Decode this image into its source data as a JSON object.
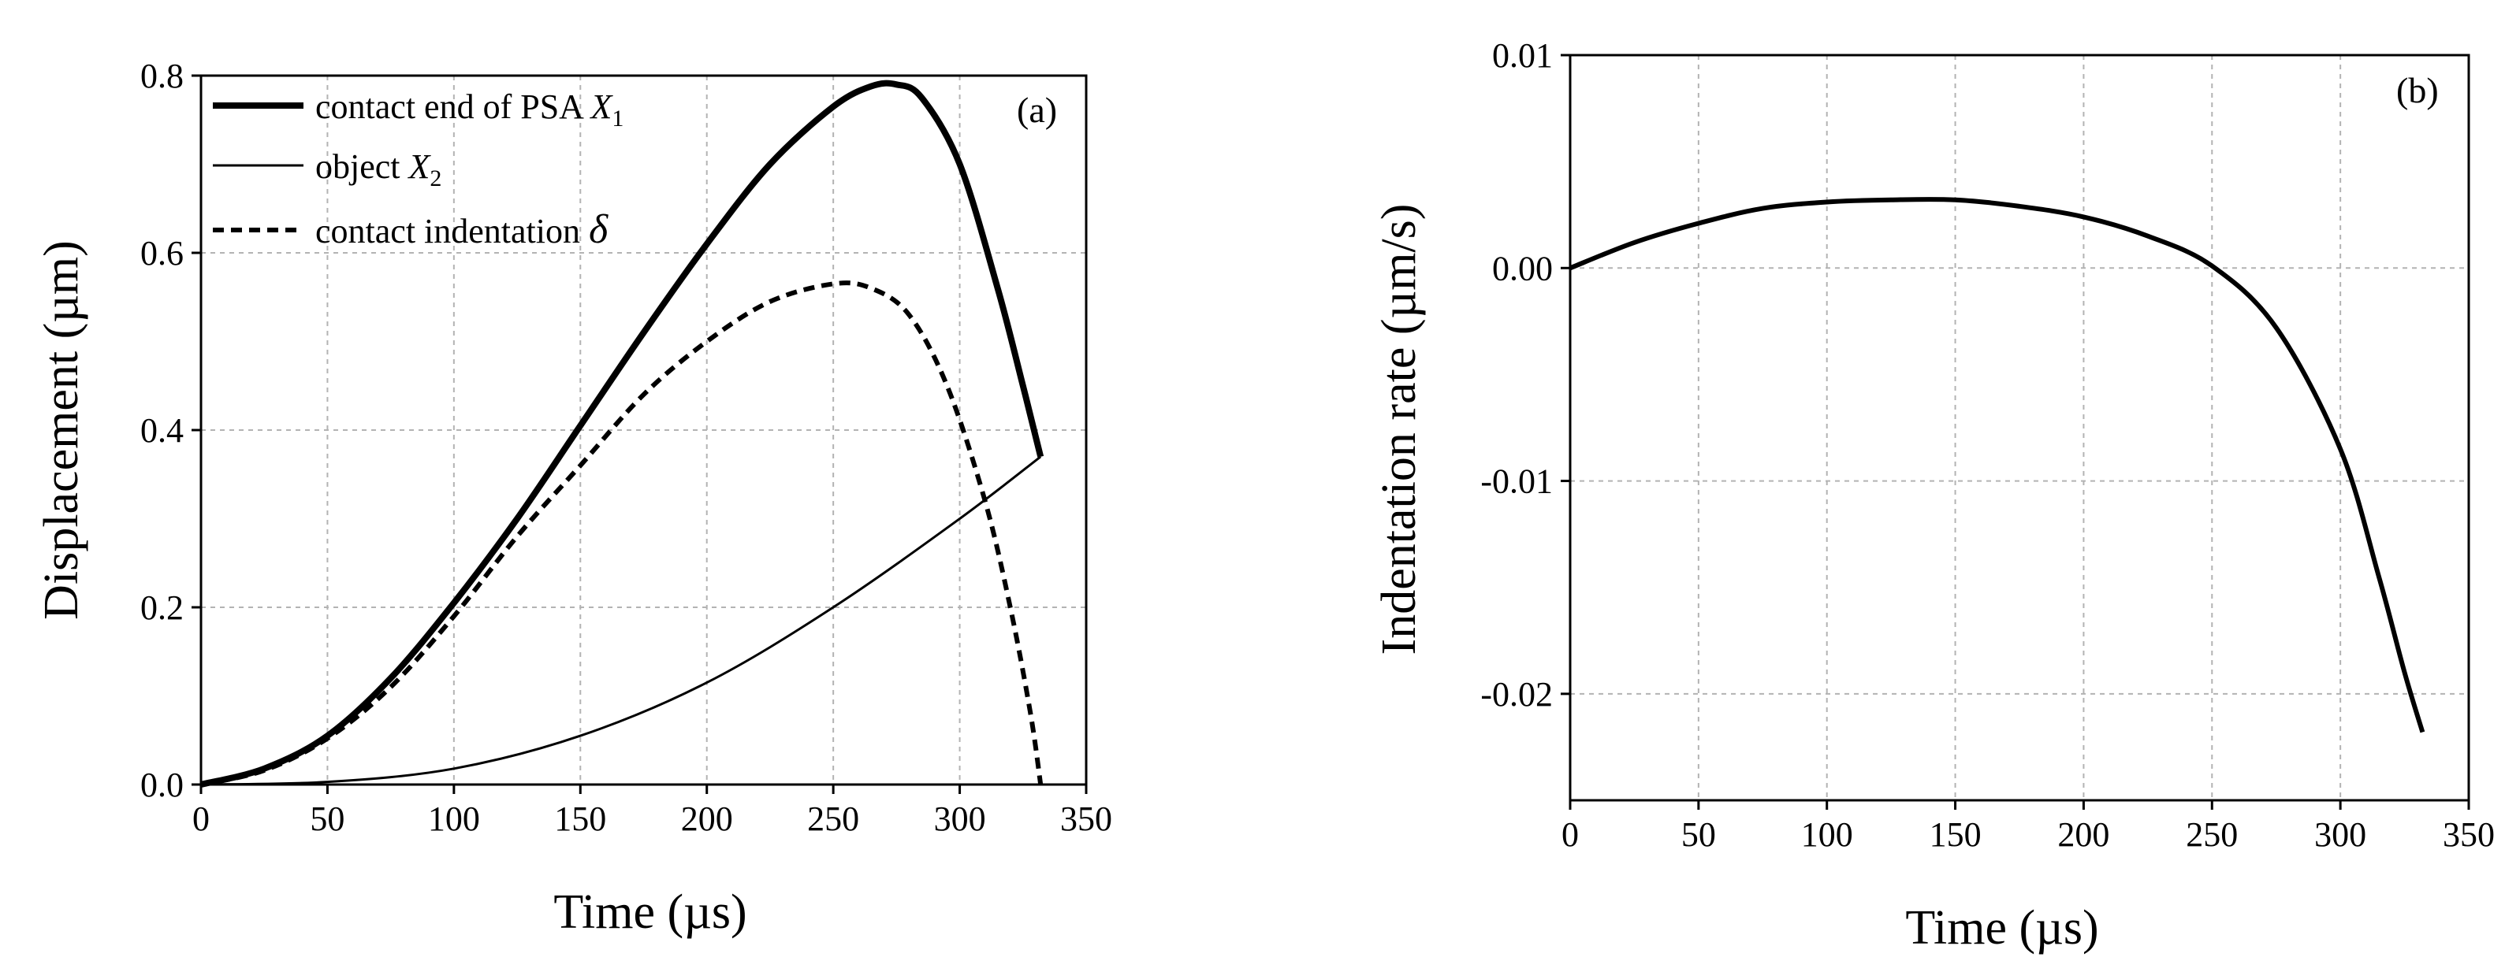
{
  "chart_data": [
    {
      "type": "line",
      "panel_label": "(a)",
      "xlabel": "Time (µs)",
      "ylabel": "Displacement (µm)",
      "xlim": [
        0,
        350
      ],
      "ylim": [
        0,
        0.8
      ],
      "xticks": [
        "0",
        "50",
        "100",
        "150",
        "200",
        "250",
        "300",
        "350"
      ],
      "yticks": [
        "0.0",
        "0.2",
        "0.4",
        "0.6",
        "0.8"
      ],
      "grid": true,
      "legend_position": "top-left",
      "series": [
        {
          "name": "contact end of PSA X1",
          "legend_main": "contact end of PSA ",
          "legend_var": "X",
          "legend_sub": "1",
          "style": "thick-solid",
          "x": [
            0,
            25,
            50,
            75,
            100,
            125,
            150,
            175,
            200,
            225,
            250,
            265,
            275,
            285,
            300,
            315,
            325,
            332
          ],
          "y": [
            0,
            0.018,
            0.055,
            0.12,
            0.205,
            0.3,
            0.405,
            0.51,
            0.61,
            0.7,
            0.765,
            0.788,
            0.79,
            0.775,
            0.7,
            0.56,
            0.45,
            0.37
          ]
        },
        {
          "name": "object X2",
          "legend_main": "object ",
          "legend_var": "X",
          "legend_sub": "2",
          "style": "thin-solid",
          "x": [
            0,
            50,
            100,
            150,
            200,
            250,
            300,
            332
          ],
          "y": [
            0,
            0.003,
            0.018,
            0.055,
            0.115,
            0.2,
            0.3,
            0.37
          ]
        },
        {
          "name": "contact indentation δ",
          "legend_main": "contact indentation ",
          "legend_var": "δ",
          "legend_sub": "",
          "style": "dashed",
          "x": [
            0,
            25,
            50,
            75,
            100,
            125,
            150,
            175,
            200,
            225,
            250,
            265,
            280,
            295,
            310,
            320,
            328,
            332
          ],
          "y": [
            0,
            0.016,
            0.052,
            0.11,
            0.19,
            0.28,
            0.36,
            0.44,
            0.5,
            0.545,
            0.565,
            0.56,
            0.53,
            0.45,
            0.32,
            0.2,
            0.08,
            0.0
          ]
        }
      ]
    },
    {
      "type": "line",
      "panel_label": "(b)",
      "xlabel": "Time (µs)",
      "ylabel": "Indentation rate (µm/s)",
      "xlim": [
        0,
        350
      ],
      "ylim": [
        -0.025,
        0.01
      ],
      "xticks": [
        "0",
        "50",
        "100",
        "150",
        "200",
        "250",
        "300",
        "350"
      ],
      "yticks": [
        "0.01",
        "0.00",
        "-0.01",
        "-0.02"
      ],
      "grid": true,
      "series": [
        {
          "name": "",
          "style": "solid",
          "x": [
            0,
            25,
            50,
            75,
            100,
            125,
            150,
            175,
            200,
            225,
            250,
            275,
            300,
            315,
            325,
            332
          ],
          "y": [
            0,
            0.0012,
            0.0021,
            0.0028,
            0.0031,
            0.0032,
            0.0032,
            0.0029,
            0.0024,
            0.0015,
            0.0001,
            -0.0028,
            -0.0085,
            -0.0145,
            -0.019,
            -0.0218
          ]
        }
      ]
    }
  ]
}
